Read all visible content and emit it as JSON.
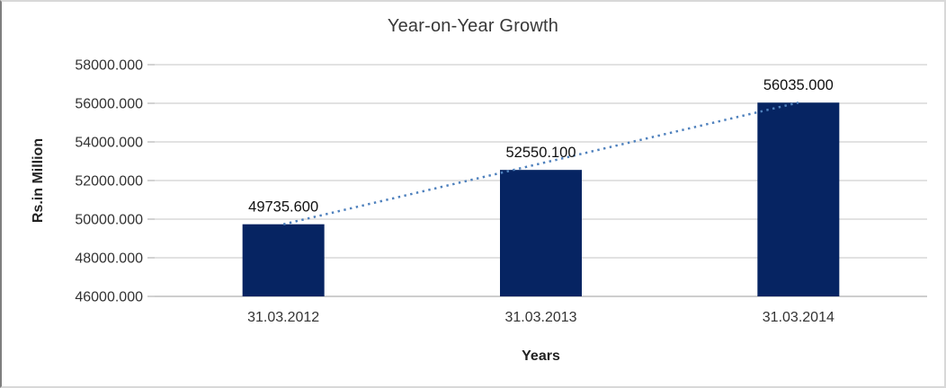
{
  "chart_data": {
    "type": "bar",
    "title": "Year-on-Year Growth",
    "xlabel": "Years",
    "ylabel": "Rs.in Million",
    "categories": [
      "31.03.2012",
      "31.03.2013",
      "31.03.2014"
    ],
    "values": [
      49735.6,
      52550.1,
      56035.0
    ],
    "value_labels": [
      "49735.600",
      "52550.100",
      "56035.000"
    ],
    "y_ticks": {
      "values": [
        46000,
        48000,
        50000,
        52000,
        54000,
        56000,
        58000
      ],
      "labels": [
        "46000.000",
        "48000.000",
        "50000.000",
        "52000.000",
        "54000.000",
        "56000.000",
        "58000.000"
      ]
    },
    "ylim": [
      46000,
      58000
    ],
    "grid": true,
    "legend": "none",
    "trendline": {
      "type": "linear",
      "style": "dotted",
      "from_point": [
        0,
        49735.6
      ],
      "to_point": [
        2,
        56035.0
      ]
    },
    "colors": {
      "bar": "#062462",
      "trendline": "#4F81BD",
      "gridline": "#D9D9D9",
      "axis_line": "#C3C3C3",
      "tick_mark": "#BFBFBF",
      "text": "#333333",
      "title_text": "#383838"
    }
  }
}
